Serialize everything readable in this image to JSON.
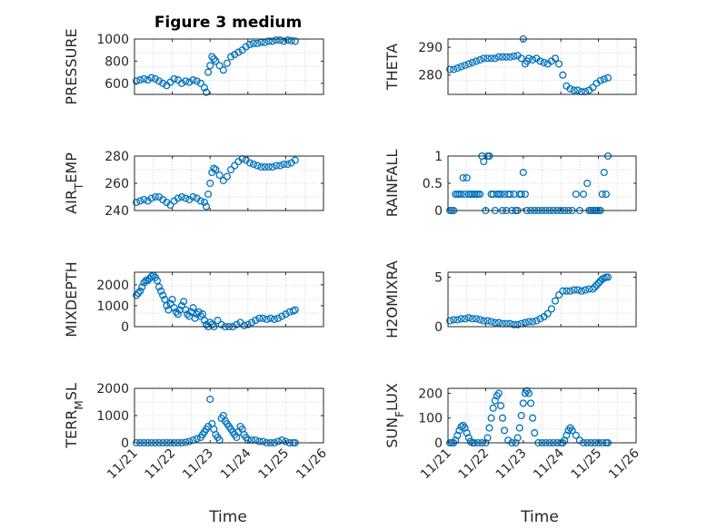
{
  "figure": {
    "title": "Figure 3 medium",
    "marker_color": "#0072BD",
    "x_tick_labels": [
      "11/21",
      "11/22",
      "11/23",
      "11/24",
      "11/25",
      "11/26"
    ],
    "xlabel_left": "Time",
    "xlabel_right": "Time"
  },
  "chart_data": [
    {
      "type": "scatter",
      "title": "Figure 3 medium",
      "ylabel": "PRESSURE",
      "xlim": [
        0,
        5
      ],
      "ylim": [
        500,
        1000
      ],
      "yticks": [
        600,
        800,
        1000
      ],
      "grid": true,
      "x": [
        0.05,
        0.15,
        0.25,
        0.35,
        0.45,
        0.55,
        0.65,
        0.75,
        0.85,
        0.95,
        1.05,
        1.15,
        1.25,
        1.35,
        1.45,
        1.55,
        1.65,
        1.75,
        1.85,
        1.9,
        1.95,
        2.0,
        2.05,
        2.1,
        2.15,
        2.25,
        2.35,
        2.45,
        2.55,
        2.65,
        2.75,
        2.85,
        2.95,
        3.05,
        3.15,
        3.25,
        3.35,
        3.45,
        3.55,
        3.65,
        3.75,
        3.85,
        3.95,
        4.05,
        4.15,
        4.25
      ],
      "y": [
        620,
        630,
        640,
        630,
        650,
        640,
        620,
        600,
        580,
        610,
        640,
        630,
        600,
        620,
        610,
        630,
        620,
        600,
        560,
        520,
        700,
        760,
        840,
        820,
        800,
        760,
        720,
        780,
        840,
        860,
        880,
        900,
        930,
        950,
        960,
        960,
        970,
        970,
        980,
        980,
        990,
        990,
        980,
        990,
        985,
        980
      ]
    },
    {
      "type": "scatter",
      "ylabel": "THETA",
      "xlim": [
        0,
        5
      ],
      "ylim": [
        273,
        293
      ],
      "yticks": [
        280,
        290
      ],
      "grid": true,
      "x": [
        0.05,
        0.15,
        0.25,
        0.35,
        0.45,
        0.55,
        0.65,
        0.75,
        0.85,
        0.95,
        1.05,
        1.15,
        1.25,
        1.35,
        1.45,
        1.55,
        1.65,
        1.75,
        1.85,
        1.95,
        2.0,
        2.05,
        2.1,
        2.15,
        2.25,
        2.35,
        2.45,
        2.55,
        2.65,
        2.75,
        2.85,
        2.95,
        3.05,
        3.15,
        3.25,
        3.35,
        3.45,
        3.55,
        3.65,
        3.75,
        3.85,
        3.95,
        4.05,
        4.15,
        4.25
      ],
      "y": [
        282,
        282,
        282.5,
        283,
        283.5,
        284,
        284.5,
        285,
        285.5,
        286,
        286,
        286,
        286,
        286.5,
        286.5,
        286.5,
        286.5,
        286.8,
        287,
        286,
        293,
        284,
        285,
        286,
        285.5,
        286,
        285,
        284.5,
        284,
        285,
        286,
        284,
        280,
        276,
        275,
        274.5,
        274.5,
        274,
        274,
        274.5,
        275.5,
        277,
        278,
        278.5,
        279
      ]
    },
    {
      "type": "scatter",
      "ylabel": "AIR_TEMP",
      "xlim": [
        0,
        5
      ],
      "ylim": [
        240,
        280
      ],
      "yticks": [
        240,
        260,
        280
      ],
      "grid": true,
      "x": [
        0.05,
        0.15,
        0.25,
        0.35,
        0.45,
        0.55,
        0.65,
        0.75,
        0.85,
        0.95,
        1.05,
        1.15,
        1.25,
        1.35,
        1.45,
        1.55,
        1.65,
        1.75,
        1.85,
        1.9,
        1.95,
        2.0,
        2.05,
        2.1,
        2.15,
        2.25,
        2.35,
        2.45,
        2.55,
        2.65,
        2.75,
        2.85,
        2.95,
        3.05,
        3.15,
        3.25,
        3.35,
        3.45,
        3.55,
        3.65,
        3.75,
        3.85,
        3.95,
        4.05,
        4.15,
        4.25
      ],
      "y": [
        246,
        247,
        248,
        247,
        249,
        250,
        250,
        248,
        246,
        244,
        247,
        249,
        250,
        249,
        248,
        250,
        249,
        247,
        246,
        243,
        252,
        260,
        268,
        271,
        270,
        266,
        262,
        265,
        270,
        273,
        276,
        278,
        277,
        275,
        274,
        273,
        272,
        272,
        272,
        272,
        273,
        273,
        274,
        274,
        275,
        277
      ]
    },
    {
      "type": "scatter",
      "ylabel": "RAINFALL",
      "xlim": [
        0,
        5
      ],
      "ylim": [
        0,
        1
      ],
      "yticks": [
        0,
        0.5,
        1
      ],
      "ytick_labels": [
        "0",
        "0.5",
        "1"
      ],
      "grid": true,
      "x": [
        0.05,
        0.1,
        0.15,
        0.2,
        0.25,
        0.3,
        0.35,
        0.4,
        0.45,
        0.5,
        0.55,
        0.6,
        0.65,
        0.7,
        0.75,
        0.8,
        0.85,
        0.9,
        0.95,
        1.0,
        1.05,
        1.1,
        1.15,
        1.2,
        1.25,
        1.3,
        1.35,
        1.4,
        1.45,
        1.5,
        1.55,
        1.6,
        1.65,
        1.7,
        1.75,
        1.8,
        1.85,
        1.9,
        1.95,
        2.0,
        2.05,
        2.1,
        2.2,
        2.3,
        2.4,
        2.5,
        2.6,
        2.7,
        2.8,
        2.9,
        3.0,
        3.1,
        3.2,
        3.3,
        3.4,
        3.5,
        3.6,
        3.7,
        3.75,
        3.8,
        3.85,
        3.9,
        3.95,
        4.0,
        4.05,
        4.1,
        4.15,
        4.2,
        4.25
      ],
      "y": [
        0,
        0,
        0,
        0.3,
        0.3,
        0.3,
        0.3,
        0.6,
        0.3,
        0.6,
        0.3,
        0.3,
        0.3,
        0.3,
        0.3,
        0.3,
        0.3,
        1,
        0.9,
        0,
        1,
        1,
        0.3,
        0.3,
        0,
        0.3,
        0.3,
        0.3,
        0,
        0.3,
        0,
        0.3,
        0.3,
        0,
        0.3,
        0,
        0,
        0.3,
        0.3,
        0.7,
        0.3,
        0,
        0,
        0,
        0,
        0,
        0,
        0,
        0,
        0,
        0,
        0,
        0,
        0,
        0.3,
        0,
        0.3,
        0.5,
        0,
        0,
        0,
        0,
        0,
        0,
        0,
        0.3,
        0.7,
        0.3,
        1
      ]
    },
    {
      "type": "scatter",
      "ylabel": "MIXDEPTH",
      "xlim": [
        0,
        5
      ],
      "ylim": [
        0,
        2600
      ],
      "yticks": [
        0,
        1000,
        2000
      ],
      "grid": true,
      "x": [
        0.05,
        0.1,
        0.15,
        0.2,
        0.25,
        0.3,
        0.35,
        0.4,
        0.45,
        0.5,
        0.55,
        0.6,
        0.65,
        0.7,
        0.75,
        0.8,
        0.85,
        0.9,
        0.95,
        1.0,
        1.05,
        1.1,
        1.15,
        1.2,
        1.25,
        1.3,
        1.35,
        1.4,
        1.45,
        1.5,
        1.55,
        1.6,
        1.65,
        1.7,
        1.75,
        1.8,
        1.85,
        1.9,
        1.95,
        2.0,
        2.05,
        2.1,
        2.2,
        2.3,
        2.4,
        2.5,
        2.6,
        2.7,
        2.8,
        2.9,
        3.0,
        3.1,
        3.2,
        3.3,
        3.4,
        3.5,
        3.6,
        3.7,
        3.8,
        3.9,
        4.0,
        4.1,
        4.2,
        4.25
      ],
      "y": [
        1500,
        1600,
        1700,
        1900,
        2100,
        2200,
        2200,
        2300,
        2400,
        2450,
        2350,
        2200,
        1900,
        1700,
        1500,
        1300,
        1000,
        800,
        1100,
        1300,
        900,
        700,
        600,
        800,
        1000,
        1200,
        800,
        600,
        500,
        700,
        900,
        400,
        600,
        700,
        500,
        600,
        300,
        100,
        0,
        200,
        100,
        0,
        300,
        100,
        0,
        0,
        0,
        100,
        200,
        50,
        100,
        200,
        300,
        400,
        400,
        350,
        400,
        350,
        400,
        500,
        600,
        700,
        750,
        800
      ]
    },
    {
      "type": "scatter",
      "ylabel": "H2OMIXRA",
      "xlim": [
        0,
        5
      ],
      "ylim": [
        0,
        5.5
      ],
      "yticks": [
        0,
        5
      ],
      "grid": true,
      "x": [
        0.05,
        0.15,
        0.25,
        0.35,
        0.45,
        0.55,
        0.65,
        0.75,
        0.85,
        0.95,
        1.05,
        1.15,
        1.25,
        1.35,
        1.45,
        1.55,
        1.65,
        1.75,
        1.85,
        1.95,
        2.05,
        2.15,
        2.25,
        2.35,
        2.45,
        2.55,
        2.65,
        2.75,
        2.85,
        2.95,
        3.05,
        3.15,
        3.25,
        3.35,
        3.45,
        3.55,
        3.65,
        3.75,
        3.85,
        3.9,
        3.95,
        4.0,
        4.05,
        4.1,
        4.15,
        4.2,
        4.25
      ],
      "y": [
        0.6,
        0.7,
        0.7,
        0.8,
        0.8,
        0.9,
        0.8,
        0.8,
        0.7,
        0.6,
        0.6,
        0.5,
        0.4,
        0.4,
        0.3,
        0.3,
        0.3,
        0.2,
        0.2,
        0.3,
        0.4,
        0.5,
        0.5,
        0.6,
        0.8,
        1.0,
        1.3,
        1.8,
        2.6,
        3.2,
        3.6,
        3.6,
        3.6,
        3.7,
        3.7,
        3.6,
        3.7,
        3.8,
        3.8,
        4.0,
        4.2,
        4.4,
        4.6,
        4.8,
        4.9,
        5.0,
        5.0
      ]
    },
    {
      "type": "scatter",
      "ylabel": "TERR_MSL",
      "xlim": [
        0,
        5
      ],
      "ylim": [
        0,
        2000
      ],
      "yticks": [
        0,
        1000,
        2000
      ],
      "grid": true,
      "x": [
        0.05,
        0.15,
        0.25,
        0.35,
        0.45,
        0.55,
        0.65,
        0.75,
        0.85,
        0.95,
        1.05,
        1.15,
        1.25,
        1.35,
        1.45,
        1.55,
        1.65,
        1.75,
        1.8,
        1.85,
        1.9,
        1.95,
        2.0,
        2.05,
        2.1,
        2.15,
        2.2,
        2.25,
        2.3,
        2.35,
        2.4,
        2.45,
        2.5,
        2.55,
        2.6,
        2.65,
        2.7,
        2.75,
        2.8,
        2.85,
        2.9,
        2.95,
        3.0,
        3.1,
        3.2,
        3.3,
        3.4,
        3.5,
        3.6,
        3.7,
        3.8,
        3.9,
        4.0,
        4.1,
        4.2,
        4.25
      ],
      "y": [
        0,
        0,
        0,
        0,
        0,
        0,
        0,
        0,
        0,
        0,
        0,
        0,
        0,
        20,
        50,
        100,
        150,
        200,
        300,
        400,
        500,
        600,
        1600,
        700,
        500,
        300,
        200,
        100,
        900,
        1000,
        800,
        700,
        600,
        500,
        400,
        300,
        200,
        400,
        600,
        500,
        300,
        200,
        100,
        100,
        100,
        50,
        50,
        0,
        0,
        0,
        50,
        100,
        50,
        0,
        0,
        0
      ]
    },
    {
      "type": "scatter",
      "ylabel": "SUN_FLUX",
      "xlim": [
        0,
        5
      ],
      "ylim": [
        0,
        220
      ],
      "yticks": [
        0,
        100,
        200
      ],
      "grid": true,
      "x": [
        0.05,
        0.1,
        0.15,
        0.2,
        0.25,
        0.3,
        0.35,
        0.4,
        0.45,
        0.5,
        0.55,
        0.6,
        0.65,
        0.7,
        0.8,
        0.9,
        1.0,
        1.05,
        1.1,
        1.15,
        1.2,
        1.25,
        1.3,
        1.35,
        1.4,
        1.45,
        1.5,
        1.6,
        1.7,
        1.8,
        1.85,
        1.9,
        1.95,
        2.0,
        2.05,
        2.1,
        2.15,
        2.2,
        2.25,
        2.3,
        2.4,
        2.5,
        2.6,
        2.7,
        2.8,
        2.9,
        3.0,
        3.05,
        3.1,
        3.15,
        3.2,
        3.25,
        3.3,
        3.4,
        3.5,
        3.6,
        3.7,
        3.8,
        3.9,
        4.0,
        4.1,
        4.2,
        4.25
      ],
      "y": [
        0,
        0,
        0,
        10,
        30,
        50,
        65,
        70,
        60,
        40,
        20,
        5,
        0,
        0,
        0,
        0,
        0,
        20,
        60,
        100,
        140,
        170,
        190,
        200,
        150,
        100,
        50,
        10,
        0,
        0,
        20,
        60,
        110,
        160,
        200,
        210,
        200,
        160,
        100,
        40,
        0,
        0,
        0,
        0,
        0,
        0,
        0,
        0,
        10,
        30,
        50,
        60,
        50,
        30,
        10,
        0,
        0,
        0,
        0,
        0,
        0,
        0,
        0
      ]
    }
  ]
}
